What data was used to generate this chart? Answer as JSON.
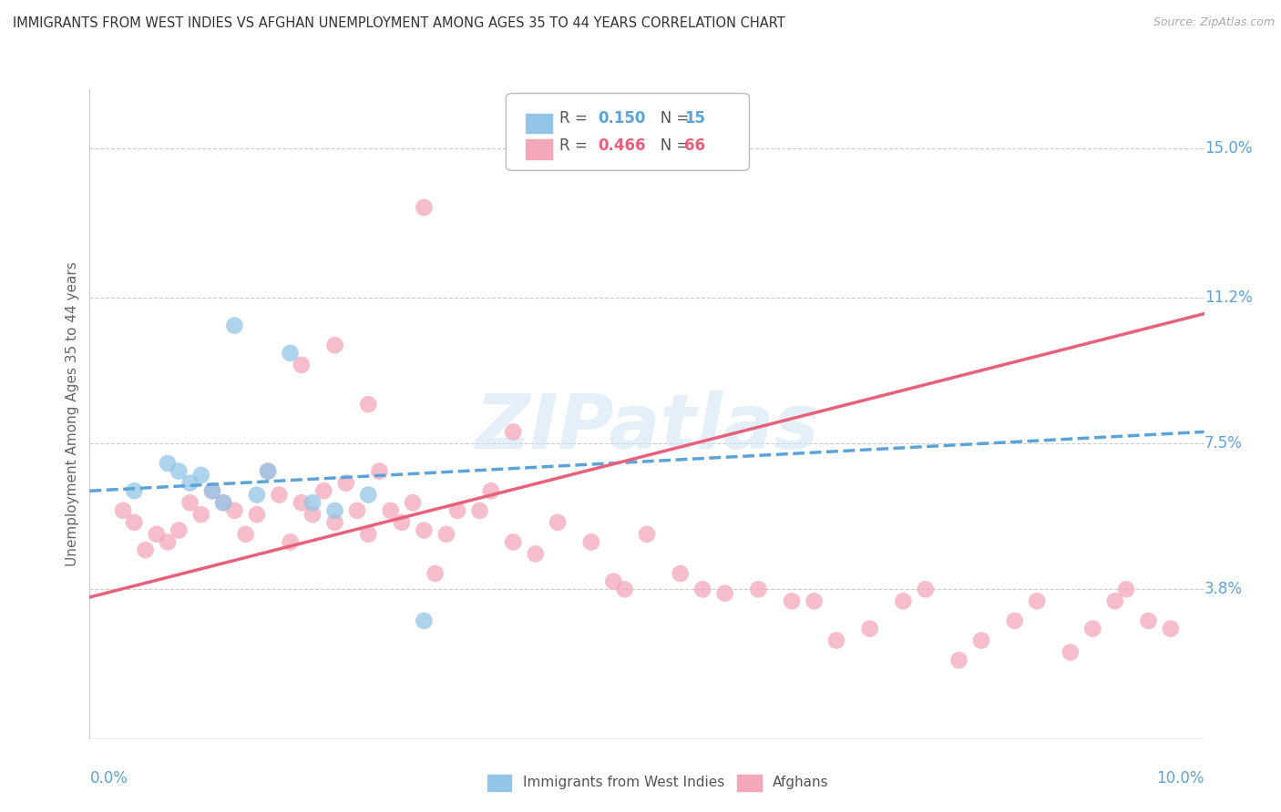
{
  "title": "IMMIGRANTS FROM WEST INDIES VS AFGHAN UNEMPLOYMENT AMONG AGES 35 TO 44 YEARS CORRELATION CHART",
  "source": "Source: ZipAtlas.com",
  "ylabel": "Unemployment Among Ages 35 to 44 years",
  "ylabel_ticks": [
    "15.0%",
    "11.2%",
    "7.5%",
    "3.8%"
  ],
  "ylabel_tick_vals": [
    0.15,
    0.112,
    0.075,
    0.038
  ],
  "xmin": 0.0,
  "xmax": 0.1,
  "ymin": 0.0,
  "ymax": 0.165,
  "color_blue": "#92c5e8",
  "color_pink": "#f4a7b9",
  "color_blue_line": "#5ba3d9",
  "color_pink_line": "#e8607a",
  "color_blue_text": "#5ba3d9",
  "color_pink_text": "#e8607a",
  "watermark": "ZIPatlas",
  "blue_x": [
    0.004,
    0.007,
    0.008,
    0.009,
    0.01,
    0.011,
    0.012,
    0.013,
    0.015,
    0.016,
    0.018,
    0.02,
    0.022,
    0.025,
    0.03
  ],
  "blue_y": [
    0.063,
    0.07,
    0.068,
    0.065,
    0.067,
    0.063,
    0.06,
    0.105,
    0.062,
    0.068,
    0.098,
    0.06,
    0.058,
    0.062,
    0.03
  ],
  "pink_x": [
    0.003,
    0.004,
    0.005,
    0.006,
    0.007,
    0.008,
    0.009,
    0.01,
    0.011,
    0.012,
    0.013,
    0.014,
    0.015,
    0.016,
    0.017,
    0.018,
    0.019,
    0.02,
    0.021,
    0.022,
    0.023,
    0.024,
    0.025,
    0.026,
    0.027,
    0.028,
    0.029,
    0.03,
    0.031,
    0.032,
    0.033,
    0.035,
    0.036,
    0.038,
    0.04,
    0.042,
    0.045,
    0.047,
    0.048,
    0.05,
    0.053,
    0.055,
    0.057,
    0.06,
    0.063,
    0.065,
    0.067,
    0.07,
    0.073,
    0.075,
    0.078,
    0.08,
    0.083,
    0.085,
    0.088,
    0.09,
    0.092,
    0.093,
    0.095,
    0.097,
    0.03,
    0.038,
    0.025,
    0.019,
    0.022
  ],
  "pink_y": [
    0.058,
    0.055,
    0.048,
    0.052,
    0.05,
    0.053,
    0.06,
    0.057,
    0.063,
    0.06,
    0.058,
    0.052,
    0.057,
    0.068,
    0.062,
    0.05,
    0.06,
    0.057,
    0.063,
    0.055,
    0.065,
    0.058,
    0.052,
    0.068,
    0.058,
    0.055,
    0.06,
    0.053,
    0.042,
    0.052,
    0.058,
    0.058,
    0.063,
    0.05,
    0.047,
    0.055,
    0.05,
    0.04,
    0.038,
    0.052,
    0.042,
    0.038,
    0.037,
    0.038,
    0.035,
    0.035,
    0.025,
    0.028,
    0.035,
    0.038,
    0.02,
    0.025,
    0.03,
    0.035,
    0.022,
    0.028,
    0.035,
    0.038,
    0.03,
    0.028,
    0.135,
    0.078,
    0.085,
    0.095,
    0.1
  ],
  "blue_line_x": [
    0.0,
    0.1
  ],
  "blue_line_y": [
    0.063,
    0.078
  ],
  "pink_line_x": [
    0.0,
    0.1
  ],
  "pink_line_y": [
    0.036,
    0.108
  ]
}
